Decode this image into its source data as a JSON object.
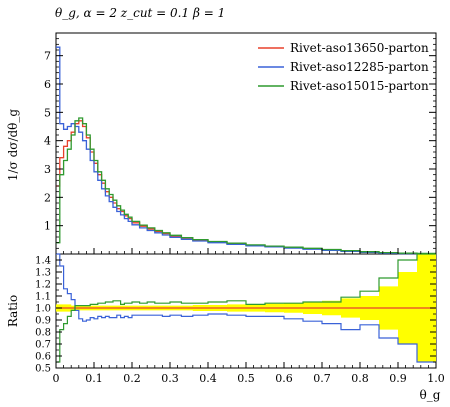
{
  "chart_data": {
    "type": "line",
    "title": "θ_g, α = 2 z_cut = 0.1 β = 1",
    "xlabel": "θ_g",
    "ylabel": "1/σ dσ/dθ_g",
    "xlim": [
      0,
      1
    ],
    "ylim": [
      0,
      7.8
    ],
    "x_ticks": [
      "0",
      "0.1",
      "0.2",
      "0.3",
      "0.4",
      "0.5",
      "0.6",
      "0.7",
      "0.8",
      "0.9",
      "1.0"
    ],
    "y_ticks": [
      "1",
      "2",
      "3",
      "4",
      "5",
      "6",
      "7"
    ],
    "legend_position": "top-right",
    "bin_edges": [
      0,
      0.01,
      0.02,
      0.03,
      0.04,
      0.05,
      0.06,
      0.07,
      0.08,
      0.09,
      0.1,
      0.11,
      0.12,
      0.13,
      0.14,
      0.15,
      0.16,
      0.17,
      0.18,
      0.19,
      0.2,
      0.22,
      0.24,
      0.26,
      0.28,
      0.3,
      0.33,
      0.36,
      0.4,
      0.45,
      0.5,
      0.55,
      0.6,
      0.65,
      0.7,
      0.75,
      0.8,
      0.85,
      0.9,
      0.95,
      1.0
    ],
    "series": [
      {
        "name": "Rivet-aso13650-parton",
        "color": "#e8412c",
        "values": [
          2.4,
          3.4,
          3.8,
          4.0,
          4.3,
          4.6,
          4.7,
          4.5,
          4.1,
          3.6,
          3.2,
          2.8,
          2.5,
          2.2,
          2.0,
          1.8,
          1.6,
          1.5,
          1.35,
          1.25,
          1.1,
          0.98,
          0.88,
          0.8,
          0.72,
          0.63,
          0.56,
          0.49,
          0.42,
          0.36,
          0.31,
          0.27,
          0.23,
          0.19,
          0.15,
          0.11,
          0.07,
          0.04,
          0.02,
          0.01
        ]
      },
      {
        "name": "Rivet-aso12285-parton",
        "color": "#3a62d8",
        "values": [
          7.3,
          4.6,
          4.4,
          4.5,
          4.6,
          4.5,
          4.3,
          4.0,
          3.7,
          3.3,
          2.9,
          2.6,
          2.3,
          2.05,
          1.85,
          1.65,
          1.5,
          1.38,
          1.25,
          1.15,
          1.03,
          0.92,
          0.83,
          0.75,
          0.67,
          0.59,
          0.52,
          0.46,
          0.4,
          0.34,
          0.29,
          0.25,
          0.21,
          0.17,
          0.13,
          0.09,
          0.06,
          0.03,
          0.015,
          0.005
        ]
      },
      {
        "name": "Rivet-aso15015-parton",
        "color": "#2f9a2f",
        "values": [
          0.4,
          2.8,
          3.3,
          3.7,
          4.2,
          4.7,
          4.8,
          4.6,
          4.2,
          3.7,
          3.3,
          2.9,
          2.6,
          2.3,
          2.1,
          1.9,
          1.7,
          1.55,
          1.4,
          1.3,
          1.15,
          1.02,
          0.92,
          0.83,
          0.75,
          0.66,
          0.58,
          0.51,
          0.44,
          0.38,
          0.32,
          0.28,
          0.24,
          0.2,
          0.16,
          0.12,
          0.08,
          0.05,
          0.03,
          0.02
        ]
      }
    ],
    "ratio": {
      "ylabel": "Ratio",
      "ylim": [
        0.5,
        1.45
      ],
      "y_ticks": [
        "0.5",
        "0.6",
        "0.7",
        "0.8",
        "0.9",
        "1.0",
        "1.1",
        "1.2",
        "1.3",
        "1.4"
      ],
      "band_color": "#ffff00",
      "band_halfwidth": [
        0.03,
        0.03,
        0.03,
        0.03,
        0.02,
        0.02,
        0.02,
        0.02,
        0.02,
        0.02,
        0.02,
        0.02,
        0.02,
        0.02,
        0.02,
        0.02,
        0.02,
        0.02,
        0.02,
        0.02,
        0.02,
        0.02,
        0.02,
        0.02,
        0.02,
        0.02,
        0.02,
        0.025,
        0.025,
        0.03,
        0.03,
        0.035,
        0.04,
        0.05,
        0.06,
        0.08,
        0.1,
        0.18,
        0.3,
        0.45
      ],
      "series": [
        {
          "name": "Rivet-aso13650-parton",
          "color": "#e8412c",
          "values": [
            1,
            1,
            1,
            1,
            1,
            1,
            1,
            1,
            1,
            1,
            1,
            1,
            1,
            1,
            1,
            1,
            1,
            1,
            1,
            1,
            1,
            1,
            1,
            1,
            1,
            1,
            1,
            1,
            1,
            1,
            1,
            1,
            1,
            1,
            1,
            1,
            1,
            1,
            1,
            1
          ]
        },
        {
          "name": "Rivet-aso12285-parton",
          "color": "#3a62d8",
          "values": [
            1.45,
            1.35,
            1.16,
            1.12,
            1.07,
            0.98,
            0.91,
            0.89,
            0.9,
            0.92,
            0.91,
            0.93,
            0.92,
            0.93,
            0.92,
            0.92,
            0.94,
            0.92,
            0.93,
            0.92,
            0.94,
            0.94,
            0.94,
            0.94,
            0.93,
            0.94,
            0.93,
            0.94,
            0.95,
            0.94,
            0.93,
            0.93,
            0.91,
            0.89,
            0.87,
            0.82,
            0.86,
            0.75,
            0.7,
            0.55
          ]
        },
        {
          "name": "Rivet-aso15015-parton",
          "color": "#2f9a2f",
          "values": [
            0.55,
            0.82,
            0.87,
            0.93,
            0.98,
            1.02,
            1.02,
            1.02,
            1.02,
            1.03,
            1.03,
            1.04,
            1.04,
            1.05,
            1.05,
            1.06,
            1.06,
            1.03,
            1.04,
            1.04,
            1.05,
            1.04,
            1.05,
            1.04,
            1.04,
            1.05,
            1.04,
            1.04,
            1.05,
            1.06,
            1.03,
            1.04,
            1.04,
            1.05,
            1.05,
            1.09,
            1.14,
            1.25,
            1.4,
            1.45
          ]
        }
      ]
    }
  }
}
